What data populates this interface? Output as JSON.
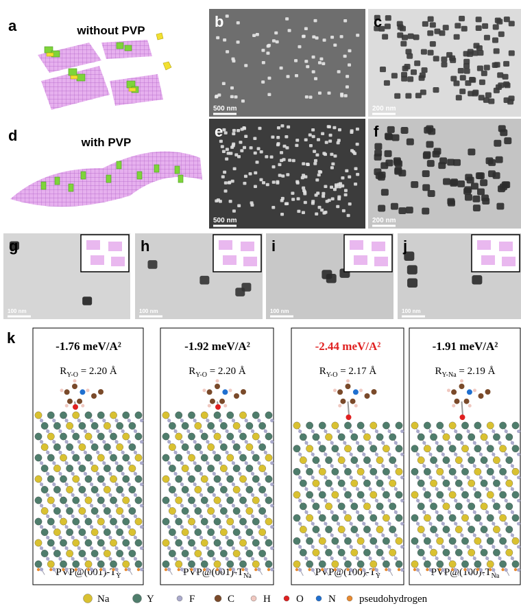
{
  "schematic": [
    {
      "label": "a",
      "title": "without PVP"
    },
    {
      "label": "d",
      "title": "with PVP"
    }
  ],
  "micrographs": [
    {
      "label": "b",
      "scale_bar": "500 nm"
    },
    {
      "label": "c",
      "scale_bar": "200 nm"
    },
    {
      "label": "e",
      "scale_bar": "500 nm"
    },
    {
      "label": "f",
      "scale_bar": "200 nm"
    },
    {
      "label": "g",
      "scale_bar": "100 nm"
    },
    {
      "label": "h",
      "scale_bar": "100 nm"
    },
    {
      "label": "i",
      "scale_bar": "100 nm"
    },
    {
      "label": "j",
      "scale_bar": "100 nm"
    }
  ],
  "panel_k": {
    "label": "k",
    "models": [
      {
        "energy": "-1.76 meV/A²",
        "energy_color": "#000000",
        "distance_symbol": "R",
        "distance_subscript": "Y-O",
        "distance_value": " = 2.20 Å",
        "caption": "PVP@(001)-T",
        "caption_subscript": "Y"
      },
      {
        "energy": "-1.92 meV/A²",
        "energy_color": "#000000",
        "distance_symbol": "R",
        "distance_subscript": "Y-O",
        "distance_value": " = 2.20 Å",
        "caption": "PVP@(001)-T",
        "caption_subscript": "Na"
      },
      {
        "energy": "-2.44 meV/A²",
        "energy_color": "#e02020",
        "distance_symbol": "R",
        "distance_subscript": "Y-O",
        "distance_value": " = 2.17 Å",
        "caption": "PVP@(100)-T",
        "caption_subscript": "Y"
      },
      {
        "energy": "-1.91 meV/A²",
        "energy_color": "#000000",
        "distance_symbol": "R",
        "distance_subscript": "Y-Na",
        "distance_value": " = 2.19 Å",
        "caption": "PVP@(100)-T",
        "caption_subscript": "Na"
      }
    ]
  },
  "legend": [
    {
      "name": "Na",
      "color": "#d9c131"
    },
    {
      "name": "Y",
      "color": "#4f7d6c"
    },
    {
      "name": "F",
      "color": "#aaaacc"
    },
    {
      "name": "C",
      "color": "#7a4a2a"
    },
    {
      "name": "H",
      "color": "#f0c8c0"
    },
    {
      "name": "O",
      "color": "#e02020"
    },
    {
      "name": "N",
      "color": "#2070d0"
    },
    {
      "name": "pseudohydrogen",
      "color": "#e88a30"
    }
  ]
}
